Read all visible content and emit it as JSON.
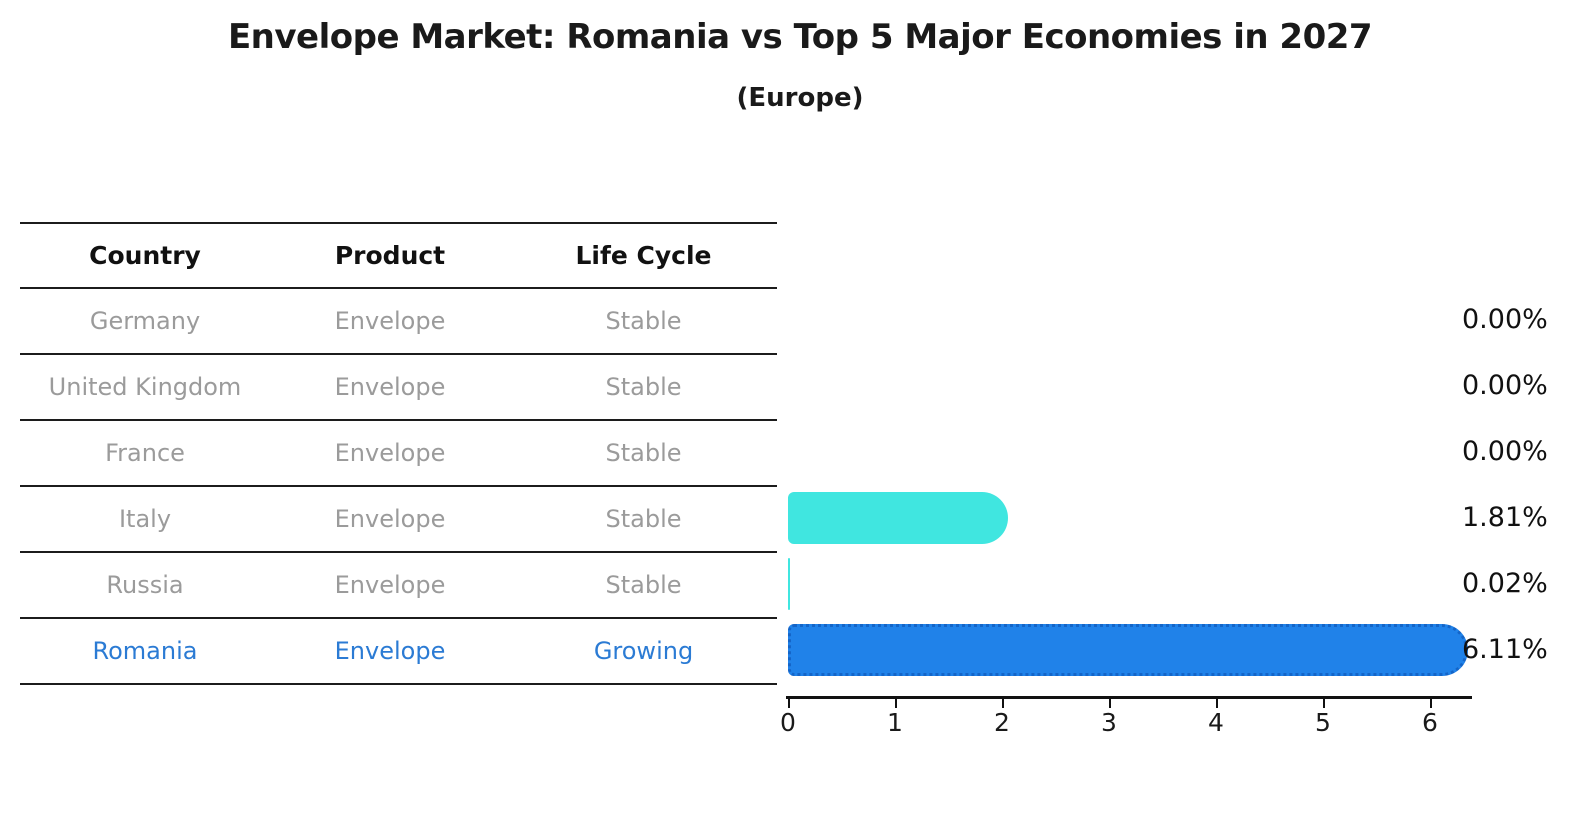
{
  "title": "Envelope Market: Romania vs Top 5 Major Economies in 2027",
  "subtitle": "(Europe)",
  "table": {
    "headers": [
      "Country",
      "Product",
      "Life Cycle"
    ],
    "rows": [
      {
        "country": "Germany",
        "product": "Envelope",
        "life_cycle": "Stable",
        "highlighted": false
      },
      {
        "country": "United Kingdom",
        "product": "Envelope",
        "life_cycle": "Stable",
        "highlighted": false
      },
      {
        "country": "France",
        "product": "Envelope",
        "life_cycle": "Stable",
        "highlighted": false
      },
      {
        "country": "Italy",
        "product": "Envelope",
        "life_cycle": "Stable",
        "highlighted": false
      },
      {
        "country": "Russia",
        "product": "Envelope",
        "life_cycle": "Stable",
        "highlighted": false
      },
      {
        "country": "Romania",
        "product": "Envelope",
        "life_cycle": "Growing",
        "highlighted": true
      }
    ]
  },
  "chart_data": {
    "type": "bar",
    "orientation": "horizontal",
    "title": "Envelope Market: Romania vs Top 5 Major Economies in 2027",
    "subtitle": "(Europe)",
    "categories": [
      "Germany",
      "United Kingdom",
      "France",
      "Italy",
      "Russia",
      "Romania"
    ],
    "values": [
      0.0,
      0.0,
      0.0,
      1.81,
      0.02,
      6.11
    ],
    "value_labels": [
      "0.00%",
      "0.00%",
      "0.00%",
      "1.81%",
      "0.02%",
      "6.11%"
    ],
    "xlabel": "",
    "ylabel": "",
    "xlim": [
      0,
      6.44
    ],
    "x_ticks": [
      0,
      1,
      2,
      3,
      4,
      5,
      6
    ],
    "grid": false,
    "legend_position": "none",
    "highlight_category": "Romania",
    "highlight_style": "dotted-border"
  },
  "colors": {
    "bar_default": "#40e6e0",
    "bar_highlight": "#2082e9",
    "bar_highlight_border": "#1465c8",
    "row_text": "#9b9b9b",
    "row_text_highlight": "#2b7bd4",
    "header_text": "#111111",
    "axis": "#111111",
    "background": "#ffffff"
  }
}
